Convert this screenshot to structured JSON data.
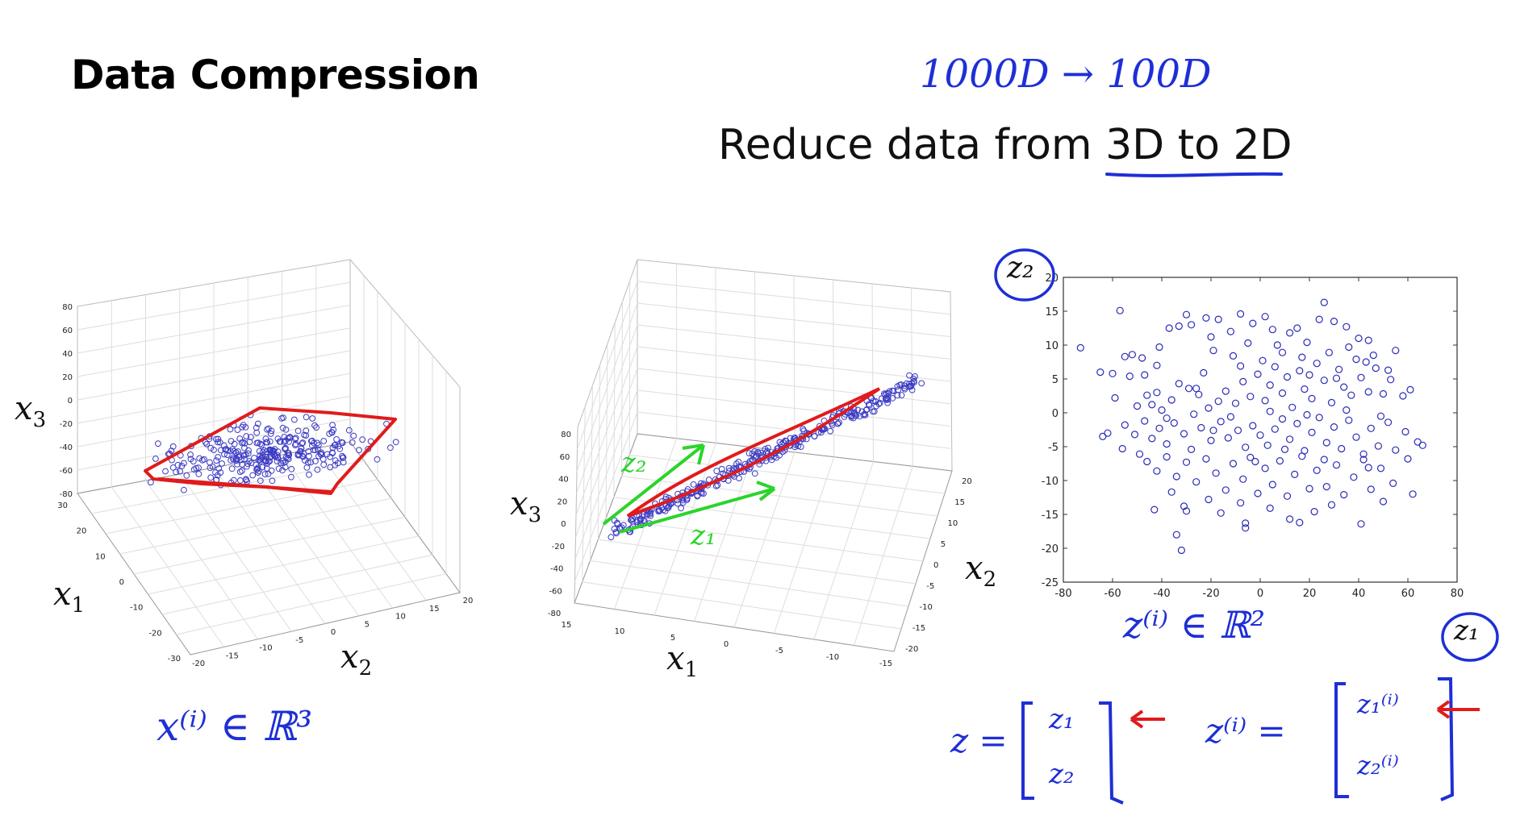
{
  "slide": {
    "title": "Data Compression",
    "subtitle_prefix": "Reduce data from ",
    "subtitle_underlined": "3D to 2D",
    "handwritten_top": "1000D → 100D"
  },
  "annotations": {
    "x_in_R3": "x⁽ⁱ⁾ ∈ ℝ³",
    "z_in_R2": "z⁽ⁱ⁾ ∈ ℝ²",
    "z_vec_lhs": "z =",
    "z_vec_entries": [
      "z₁",
      "z₂"
    ],
    "zi_vec_lhs": "z⁽ⁱ⁾ =",
    "zi_vec_entries": [
      "z₁⁽ⁱ⁾",
      "z₂⁽ⁱ⁾"
    ],
    "green_z1": "z₁",
    "green_z2": "z₂",
    "circled_z1": "z₁",
    "circled_z2": "z₂"
  },
  "plot3d_left": {
    "labels": {
      "x1": "x",
      "x1_sub": "1",
      "x2": "x",
      "x2_sub": "2",
      "x3": "x",
      "x3_sub": "3"
    },
    "z_ticks": [
      "80",
      "60",
      "40",
      "20",
      "0",
      "-20",
      "-40",
      "-60",
      "-80"
    ],
    "x1_ticks": [
      "30",
      "20",
      "10",
      "0",
      "-10",
      "-20",
      "-30"
    ],
    "x2_ticks": [
      "-20",
      "-15",
      "-10",
      "-5",
      "0",
      "5",
      "10",
      "15",
      "20"
    ]
  },
  "plot3d_mid": {
    "labels": {
      "x1": "x",
      "x1_sub": "1",
      "x2": "x",
      "x2_sub": "2",
      "x3": "x",
      "x3_sub": "3"
    },
    "z_ticks": [
      "80",
      "60",
      "40",
      "20",
      "0",
      "-20",
      "-40",
      "-60",
      "-80"
    ],
    "x1_ticks": [
      "15",
      "10",
      "5",
      "0",
      "-5",
      "-10",
      "-15"
    ],
    "x2_ticks": [
      "20",
      "15",
      "10",
      "5",
      "0",
      "-5",
      "-10",
      "-15",
      "-20"
    ]
  },
  "chart_data": {
    "type": "scatter",
    "xlabel": "z₁",
    "ylabel": "z₂",
    "xlim": [
      -80,
      80
    ],
    "ylim": [
      -25,
      20
    ],
    "x_ticks": [
      -80,
      -60,
      -40,
      -20,
      0,
      20,
      40,
      60,
      80
    ],
    "y_ticks": [
      -25,
      -20,
      -15,
      -10,
      -5,
      0,
      5,
      10,
      15,
      20
    ],
    "y_tick_labels": [
      "-25",
      "-20",
      "-15",
      "-10",
      "-5",
      "0",
      "5",
      "10",
      "15",
      "20"
    ],
    "x_tick_labels": [
      "-80",
      "-60",
      "-40",
      "-20",
      "0",
      "20",
      "40",
      "60",
      "80"
    ],
    "grid": false,
    "marker_color": "#2a2ab8",
    "points": [
      [
        -73,
        9.6
      ],
      [
        -57,
        15.1
      ],
      [
        -65,
        6
      ],
      [
        -60,
        5.8
      ],
      [
        -55,
        8.3
      ],
      [
        -53,
        5.4
      ],
      [
        -52,
        8.6
      ],
      [
        -48,
        8.1
      ],
      [
        -42,
        7
      ],
      [
        -41,
        9.7
      ],
      [
        -37,
        12.5
      ],
      [
        -33,
        12.8
      ],
      [
        -30,
        14.5
      ],
      [
        -28,
        13
      ],
      [
        -22,
        14
      ],
      [
        -20,
        11.2
      ],
      [
        -17,
        13.8
      ],
      [
        -12,
        12
      ],
      [
        -8,
        14.6
      ],
      [
        -3,
        13.2
      ],
      [
        2,
        14.2
      ],
      [
        5,
        12.3
      ],
      [
        7,
        10
      ],
      [
        12,
        11.8
      ],
      [
        15,
        12.5
      ],
      [
        19,
        10.4
      ],
      [
        24,
        13.8
      ],
      [
        26,
        16.3
      ],
      [
        30,
        13.5
      ],
      [
        35,
        12.7
      ],
      [
        40,
        11
      ],
      [
        44,
        10.7
      ],
      [
        46,
        8.5
      ],
      [
        55,
        9.2
      ],
      [
        -59,
        2.2
      ],
      [
        -50,
        1
      ],
      [
        -46,
        2.6
      ],
      [
        -44,
        1.2
      ],
      [
        -42,
        3
      ],
      [
        -40,
        0.4
      ],
      [
        -36,
        1.9
      ],
      [
        -33,
        4.3
      ],
      [
        -29,
        3.6
      ],
      [
        -25,
        2.7
      ],
      [
        -21,
        0.7
      ],
      [
        -17,
        1.7
      ],
      [
        -14,
        3.2
      ],
      [
        -10,
        1.4
      ],
      [
        -7,
        4.6
      ],
      [
        -4,
        2.4
      ],
      [
        -1,
        5.7
      ],
      [
        2,
        1.8
      ],
      [
        4,
        4.1
      ],
      [
        6,
        6.8
      ],
      [
        9,
        2.9
      ],
      [
        11,
        5.3
      ],
      [
        13,
        0.8
      ],
      [
        16,
        6.2
      ],
      [
        18,
        3.5
      ],
      [
        21,
        2.1
      ],
      [
        23,
        7.3
      ],
      [
        26,
        4.8
      ],
      [
        29,
        1.5
      ],
      [
        32,
        6.4
      ],
      [
        34,
        3.8
      ],
      [
        37,
        2.6
      ],
      [
        41,
        5.2
      ],
      [
        44,
        3.1
      ],
      [
        47,
        6.6
      ],
      [
        50,
        2.8
      ],
      [
        53,
        4.9
      ],
      [
        58,
        2.5
      ],
      [
        61,
        3.4
      ],
      [
        -55,
        -1.8
      ],
      [
        -51,
        -3.2
      ],
      [
        -47,
        -1.2
      ],
      [
        -44,
        -3.8
      ],
      [
        -41,
        -2.3
      ],
      [
        -38,
        -4.6
      ],
      [
        -35,
        -1.5
      ],
      [
        -31,
        -3.1
      ],
      [
        -28,
        -5.4
      ],
      [
        -24,
        -2.2
      ],
      [
        -20,
        -4.1
      ],
      [
        -16,
        -1.3
      ],
      [
        -13,
        -3.7
      ],
      [
        -9,
        -2.6
      ],
      [
        -6,
        -5.1
      ],
      [
        -3,
        -1.9
      ],
      [
        0,
        -3.3
      ],
      [
        3,
        -4.8
      ],
      [
        6,
        -2.4
      ],
      [
        9,
        -0.9
      ],
      [
        12,
        -3.9
      ],
      [
        15,
        -1.6
      ],
      [
        18,
        -5.6
      ],
      [
        21,
        -2.9
      ],
      [
        24,
        -0.7
      ],
      [
        27,
        -4.4
      ],
      [
        30,
        -2.1
      ],
      [
        33,
        -5.3
      ],
      [
        36,
        -1.1
      ],
      [
        39,
        -3.6
      ],
      [
        42,
        -6.1
      ],
      [
        45,
        -2.3
      ],
      [
        48,
        -4.9
      ],
      [
        52,
        -1.4
      ],
      [
        55,
        -5.5
      ],
      [
        59,
        -2.8
      ],
      [
        64,
        -4.3
      ],
      [
        66,
        -4.8
      ],
      [
        -62,
        -3
      ],
      [
        -64,
        -3.5
      ],
      [
        -49,
        -6.1
      ],
      [
        -46,
        -7.2
      ],
      [
        -42,
        -8.6
      ],
      [
        -38,
        -6.5
      ],
      [
        -34,
        -9.4
      ],
      [
        -30,
        -7.3
      ],
      [
        -26,
        -10.2
      ],
      [
        -22,
        -6.8
      ],
      [
        -18,
        -8.9
      ],
      [
        -14,
        -11.4
      ],
      [
        -11,
        -7.5
      ],
      [
        -7,
        -9.8
      ],
      [
        -4,
        -6.6
      ],
      [
        -1,
        -11.9
      ],
      [
        2,
        -8.2
      ],
      [
        5,
        -10.6
      ],
      [
        8,
        -7.1
      ],
      [
        11,
        -12.3
      ],
      [
        14,
        -9.1
      ],
      [
        17,
        -6.4
      ],
      [
        20,
        -11.2
      ],
      [
        23,
        -8.5
      ],
      [
        27,
        -10.9
      ],
      [
        31,
        -7.7
      ],
      [
        34,
        -12.1
      ],
      [
        38,
        -9.5
      ],
      [
        42,
        -6.9
      ],
      [
        45,
        -11.3
      ],
      [
        49,
        -8.2
      ],
      [
        54,
        -10.4
      ],
      [
        -43,
        -14.3
      ],
      [
        -31,
        -13.8
      ],
      [
        -30,
        -14.5
      ],
      [
        -21,
        -12.8
      ],
      [
        -16,
        -14.8
      ],
      [
        -6,
        -16.3
      ],
      [
        -6,
        -17
      ],
      [
        4,
        -14.1
      ],
      [
        12,
        -15.7
      ],
      [
        16,
        -16.2
      ],
      [
        22,
        -14.6
      ],
      [
        -34,
        -18
      ],
      [
        -32,
        -20.3
      ],
      [
        41,
        -16.4
      ],
      [
        62,
        -12
      ],
      [
        -26,
        3.6
      ],
      [
        -23,
        5.9
      ],
      [
        -19,
        9.2
      ],
      [
        -11,
        8.4
      ],
      [
        -5,
        10.3
      ],
      [
        9,
        8.9
      ],
      [
        17,
        8.2
      ],
      [
        28,
        8.9
      ],
      [
        36,
        9.7
      ],
      [
        43,
        7.5
      ],
      [
        -47,
        5.6
      ],
      [
        -8,
        6.9
      ],
      [
        1,
        7.7
      ],
      [
        20,
        5.6
      ],
      [
        31,
        5.1
      ],
      [
        39,
        7.9
      ],
      [
        52,
        6.3
      ],
      [
        -38,
        -0.8
      ],
      [
        -27,
        -0.2
      ],
      [
        -12,
        -0.6
      ],
      [
        4,
        0.2
      ],
      [
        19,
        -0.3
      ],
      [
        35,
        0.4
      ],
      [
        49,
        -0.5
      ],
      [
        -56,
        -5.3
      ],
      [
        -19,
        -2.6
      ],
      [
        -2,
        -7.2
      ],
      [
        10,
        -5.4
      ],
      [
        26,
        -6.9
      ],
      [
        44,
        -8.1
      ],
      [
        60,
        -6.8
      ],
      [
        -36,
        -11.7
      ],
      [
        -8,
        -13.3
      ],
      [
        29,
        -13.6
      ],
      [
        50,
        -13.1
      ]
    ]
  }
}
